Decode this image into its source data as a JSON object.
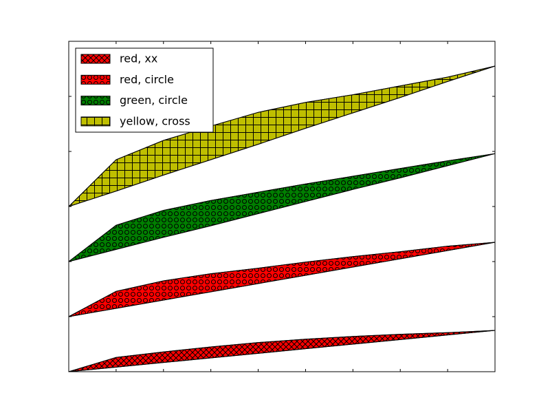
{
  "chart_data": {
    "type": "fill_between",
    "x": [
      0,
      1,
      2,
      3,
      4,
      5,
      6,
      7,
      8,
      9
    ],
    "xlim": [
      0,
      9
    ],
    "ylim": [
      0,
      6
    ],
    "xticks": [
      0,
      1,
      2,
      3,
      4,
      5,
      6,
      7,
      8,
      9
    ],
    "yticks": [
      0,
      1,
      2,
      3,
      4,
      5,
      6
    ],
    "legend": "upper left",
    "series": [
      {
        "name": "red, xx",
        "color": "#ff0000",
        "hatch": "xx",
        "lower": [
          0,
          0.083,
          0.167,
          0.25,
          0.333,
          0.417,
          0.5,
          0.583,
          0.667,
          0.75
        ],
        "values": [
          0,
          0.26,
          0.36,
          0.45,
          0.53,
          0.59,
          0.64,
          0.68,
          0.71,
          0.75
        ]
      },
      {
        "name": "red, circle",
        "color": "#ff0000",
        "hatch": "circle",
        "lower": [
          1,
          1.15,
          1.3,
          1.45,
          1.6,
          1.75,
          1.9,
          2.05,
          2.2,
          2.35
        ],
        "values": [
          1,
          1.46,
          1.65,
          1.78,
          1.88,
          1.99,
          2.09,
          2.18,
          2.28,
          2.35
        ]
      },
      {
        "name": "green, circle",
        "color": "#007f00",
        "hatch": "circle",
        "lower": [
          2,
          2.22,
          2.44,
          2.65,
          2.87,
          3.09,
          3.31,
          3.52,
          3.74,
          3.96
        ],
        "values": [
          2,
          2.66,
          2.93,
          3.11,
          3.26,
          3.41,
          3.55,
          3.69,
          3.83,
          3.96
        ]
      },
      {
        "name": "yellow, cross",
        "color": "#bfbf00",
        "hatch": "cross",
        "lower": [
          3,
          3.28,
          3.57,
          3.85,
          4.13,
          4.42,
          4.7,
          4.98,
          5.27,
          5.55
        ],
        "values": [
          3,
          3.85,
          4.2,
          4.46,
          4.71,
          4.89,
          5.03,
          5.19,
          5.35,
          5.55
        ]
      }
    ]
  }
}
